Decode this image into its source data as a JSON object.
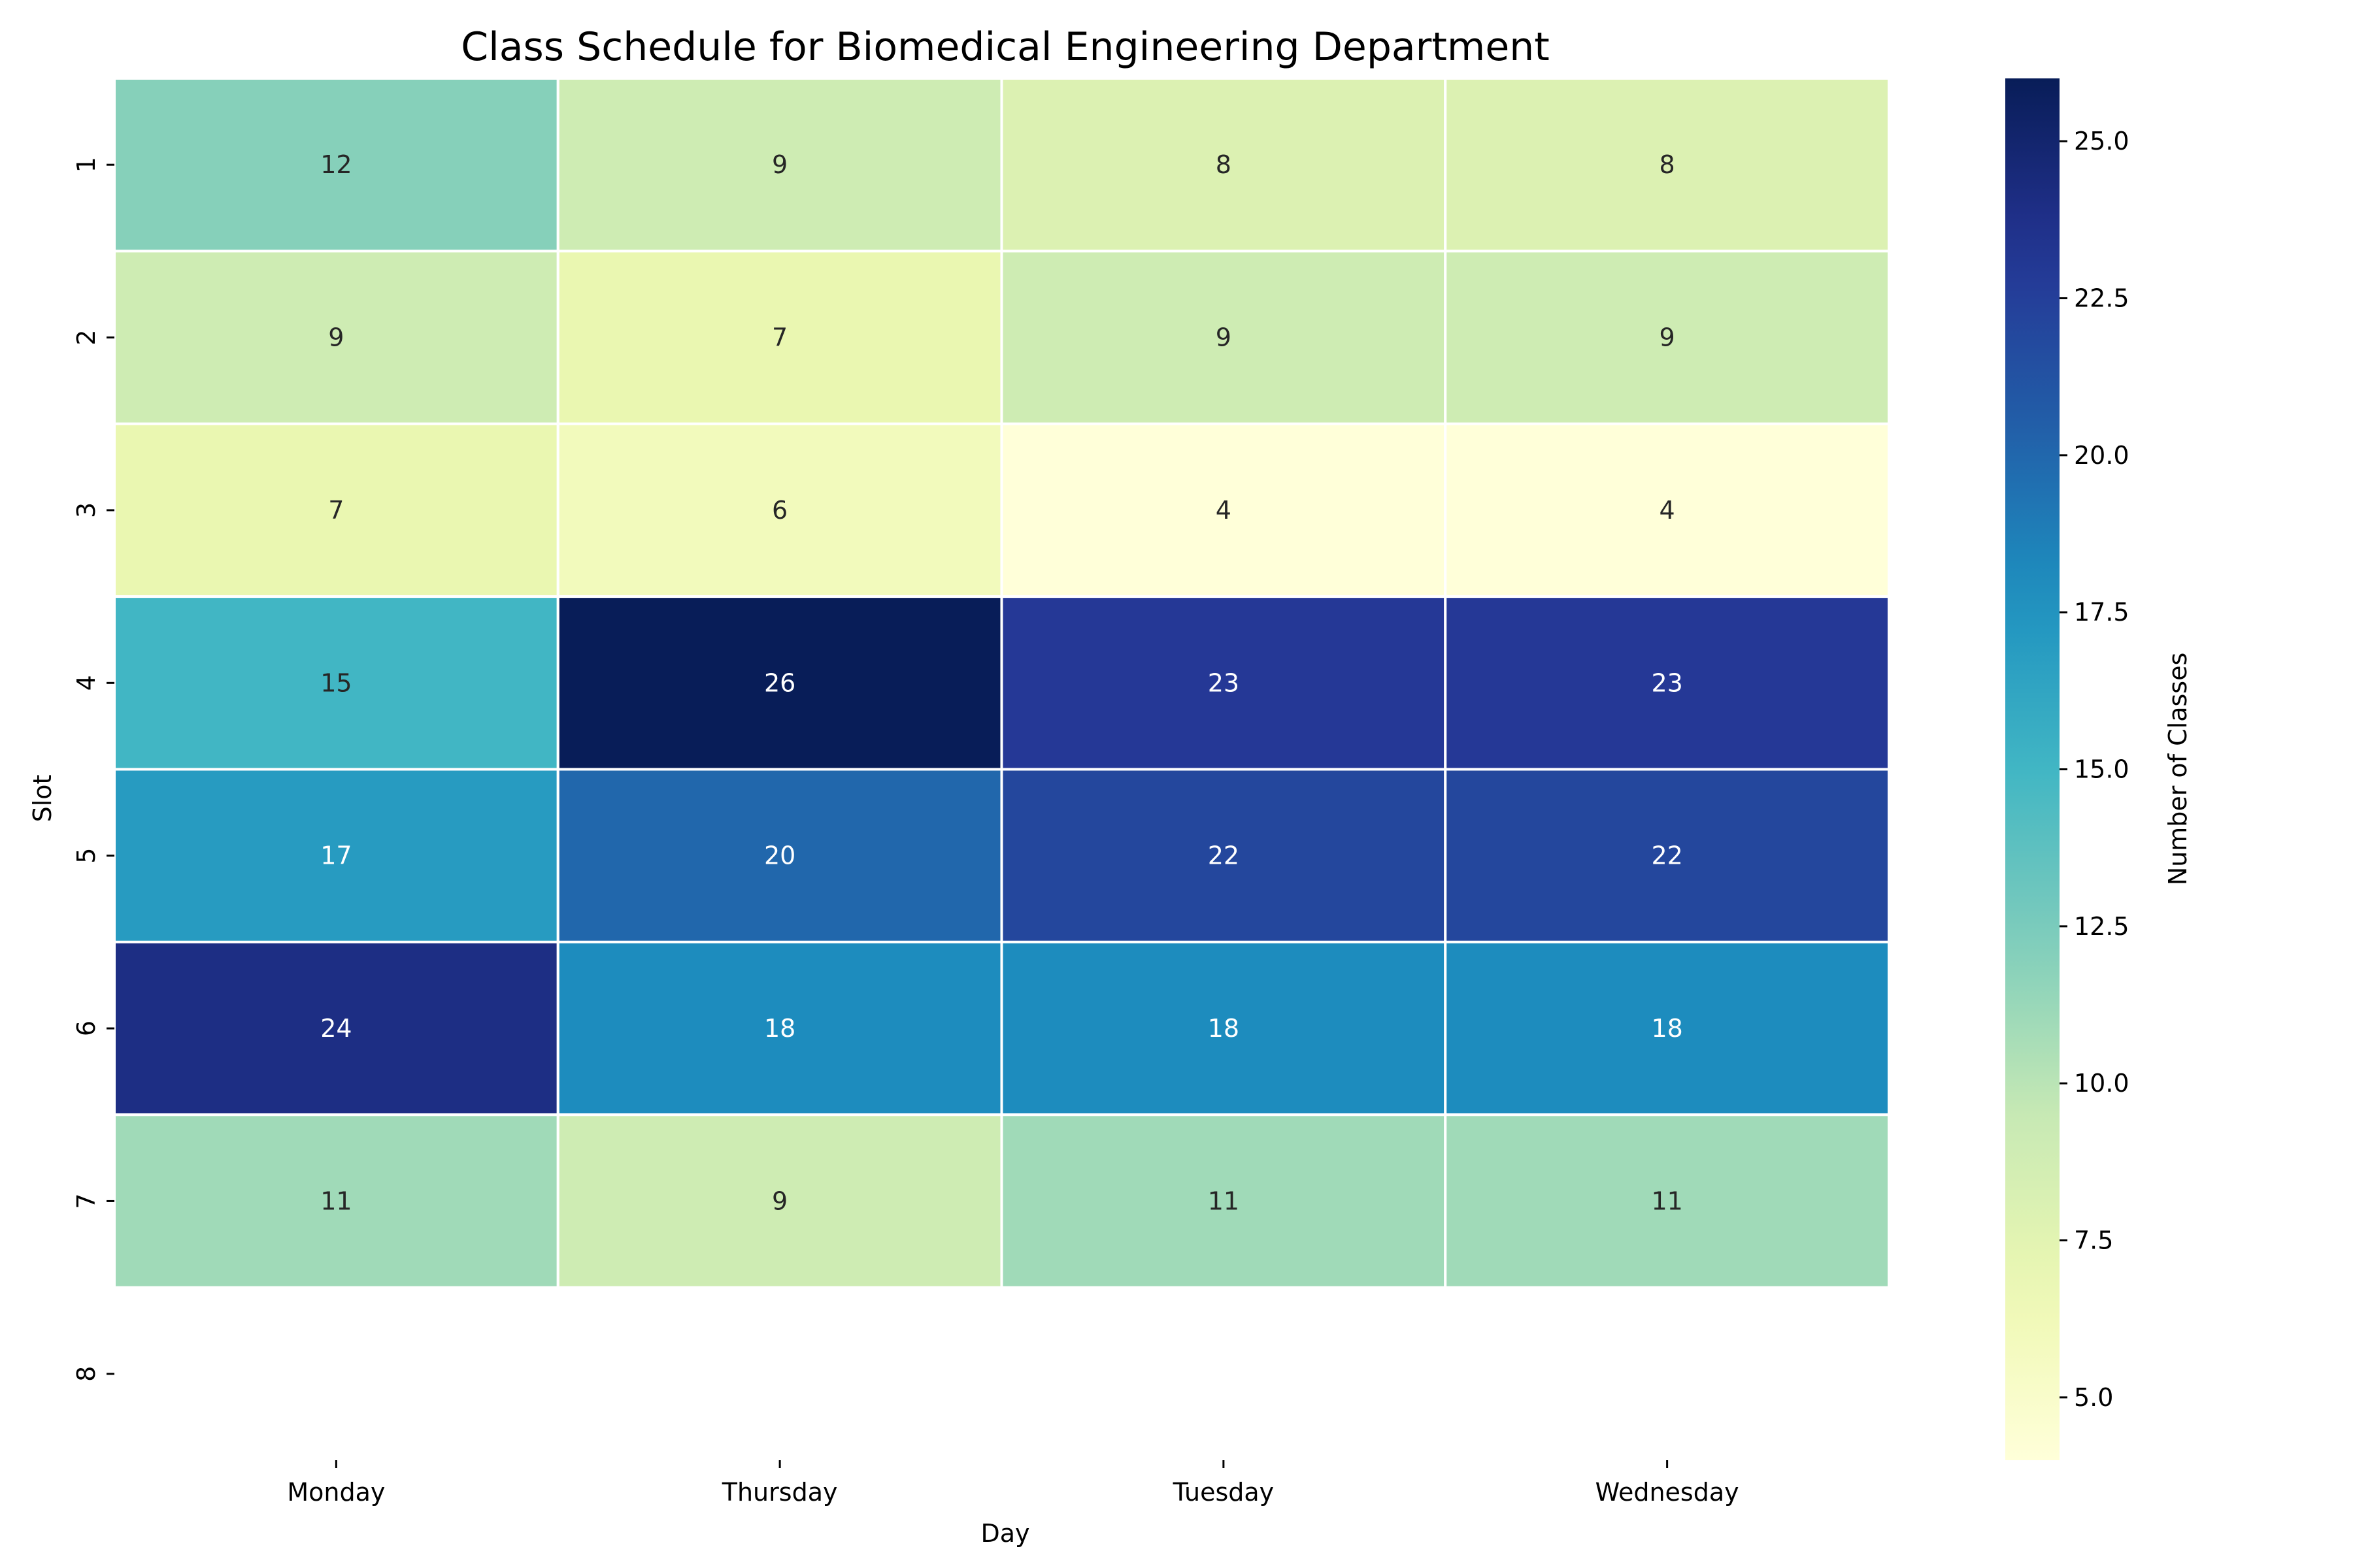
{
  "chart_data": {
    "type": "heatmap",
    "title": "Class Schedule for Biomedical Engineering Department",
    "xlabel": "Day",
    "ylabel": "Slot",
    "x_categories": [
      "Monday",
      "Thursday",
      "Tuesday",
      "Wednesday"
    ],
    "y_categories": [
      "1",
      "2",
      "3",
      "4",
      "5",
      "6",
      "7",
      "8"
    ],
    "values": [
      [
        12,
        9,
        8,
        8
      ],
      [
        9,
        7,
        9,
        9
      ],
      [
        7,
        6,
        4,
        4
      ],
      [
        15,
        26,
        23,
        23
      ],
      [
        17,
        20,
        22,
        22
      ],
      [
        24,
        18,
        18,
        18
      ],
      [
        11,
        9,
        11,
        11
      ],
      [
        null,
        null,
        null,
        null
      ]
    ],
    "colorbar": {
      "label": "Number of Classes",
      "range": [
        4,
        26
      ],
      "ticks": [
        5.0,
        7.5,
        10.0,
        12.5,
        15.0,
        17.5,
        20.0,
        22.5,
        25.0
      ],
      "colormap": "YlGnBu"
    },
    "grid": false,
    "cell_border_color": "#ffffff"
  }
}
